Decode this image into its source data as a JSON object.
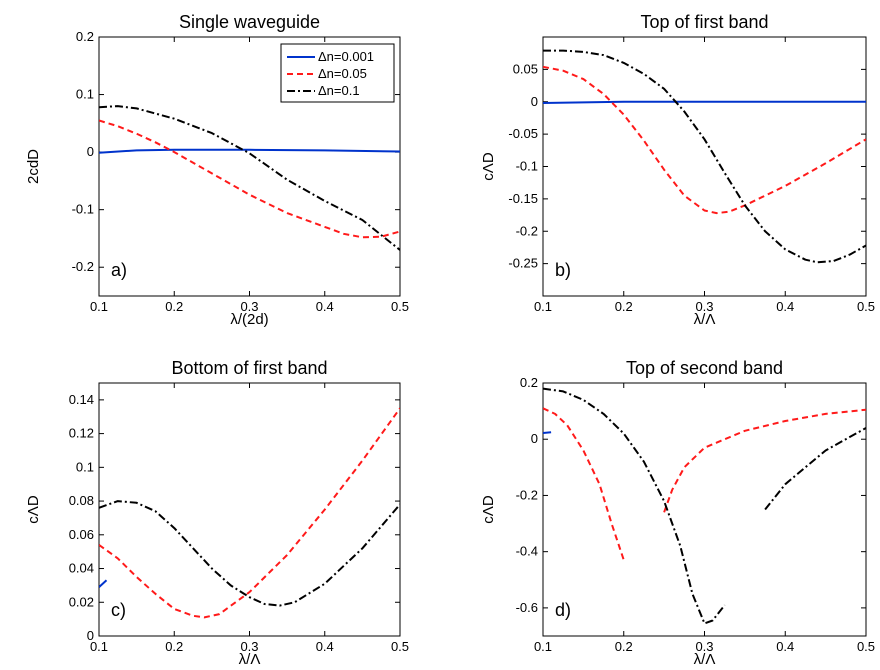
{
  "figure": {
    "background": "#ffffff"
  },
  "chart_data": [
    {
      "type": "line",
      "title": "Single waveguide",
      "xlabel": "λ/(2d)",
      "ylabel": "2cdD",
      "panel_tag": "a)",
      "xlim": [
        0.1,
        0.5
      ],
      "ylim": [
        -0.25,
        0.2
      ],
      "xticks": [
        0.1,
        0.2,
        0.3,
        0.4,
        0.5
      ],
      "xtick_labels": [
        "0.1",
        "0.2",
        "0.3",
        "0.4",
        "0.5"
      ],
      "yticks": [
        -0.2,
        -0.1,
        0,
        0.1,
        0.2
      ],
      "ytick_labels": [
        "-0.2",
        "-0.1",
        "0",
        "0.1",
        "0.2"
      ],
      "grid": false,
      "legend": {
        "position": "top-right",
        "entries": [
          {
            "label": "Δn=0.001",
            "color": "#0033cc",
            "style": "solid"
          },
          {
            "label": "Δn=0.05",
            "color": "#ff1a1a",
            "style": "dashed"
          },
          {
            "label": "Δn=0.1",
            "color": "#000000",
            "style": "dashdot"
          }
        ]
      },
      "series": [
        {
          "name": "Δn=0.001",
          "color": "#0033cc",
          "style": "solid",
          "segments": [
            [
              [
                0.1,
                -0.001
              ],
              [
                0.15,
                0.003
              ],
              [
                0.2,
                0.004
              ],
              [
                0.3,
                0.004
              ],
              [
                0.4,
                0.003
              ],
              [
                0.5,
                0.001
              ]
            ]
          ]
        },
        {
          "name": "Δn=0.05",
          "color": "#ff1a1a",
          "style": "dashed",
          "segments": [
            [
              [
                0.1,
                0.055
              ],
              [
                0.125,
                0.045
              ],
              [
                0.15,
                0.032
              ],
              [
                0.175,
                0.017
              ],
              [
                0.2,
                0.0
              ],
              [
                0.25,
                -0.037
              ],
              [
                0.3,
                -0.074
              ],
              [
                0.35,
                -0.106
              ],
              [
                0.4,
                -0.13
              ],
              [
                0.425,
                -0.142
              ],
              [
                0.45,
                -0.148
              ],
              [
                0.475,
                -0.147
              ],
              [
                0.5,
                -0.138
              ]
            ]
          ]
        },
        {
          "name": "Δn=0.1",
          "color": "#000000",
          "style": "dashdot",
          "segments": [
            [
              [
                0.1,
                0.078
              ],
              [
                0.125,
                0.08
              ],
              [
                0.15,
                0.076
              ],
              [
                0.2,
                0.058
              ],
              [
                0.25,
                0.033
              ],
              [
                0.3,
                -0.002
              ],
              [
                0.35,
                -0.048
              ],
              [
                0.4,
                -0.085
              ],
              [
                0.45,
                -0.118
              ],
              [
                0.5,
                -0.17
              ]
            ]
          ]
        }
      ]
    },
    {
      "type": "line",
      "title": "Top of first band",
      "xlabel": "λ/Λ",
      "ylabel": "cΛD",
      "panel_tag": "b)",
      "xlim": [
        0.1,
        0.5
      ],
      "ylim": [
        -0.3,
        0.1
      ],
      "xticks": [
        0.1,
        0.2,
        0.3,
        0.4,
        0.5
      ],
      "xtick_labels": [
        "0.1",
        "0.2",
        "0.3",
        "0.4",
        "0.5"
      ],
      "yticks": [
        -0.25,
        -0.2,
        -0.15,
        -0.1,
        -0.05,
        0,
        0.05
      ],
      "ytick_labels": [
        "-0.25",
        "-0.2",
        "-0.15",
        "-0.1",
        "-0.05",
        "0",
        "0.05"
      ],
      "grid": false,
      "series": [
        {
          "name": "Δn=0.001",
          "color": "#0033cc",
          "style": "solid",
          "segments": [
            [
              [
                0.1,
                -0.002
              ],
              [
                0.15,
                -0.001
              ],
              [
                0.2,
                0.0
              ],
              [
                0.3,
                0.0
              ],
              [
                0.4,
                0.0
              ],
              [
                0.5,
                0.0
              ]
            ]
          ]
        },
        {
          "name": "Δn=0.05",
          "color": "#ff1a1a",
          "style": "dashed",
          "segments": [
            [
              [
                0.1,
                0.054
              ],
              [
                0.125,
                0.048
              ],
              [
                0.15,
                0.035
              ],
              [
                0.175,
                0.012
              ],
              [
                0.2,
                -0.02
              ],
              [
                0.225,
                -0.06
              ],
              [
                0.25,
                -0.105
              ],
              [
                0.275,
                -0.145
              ],
              [
                0.3,
                -0.168
              ],
              [
                0.315,
                -0.172
              ],
              [
                0.33,
                -0.17
              ],
              [
                0.35,
                -0.16
              ],
              [
                0.4,
                -0.13
              ],
              [
                0.45,
                -0.095
              ],
              [
                0.5,
                -0.058
              ]
            ]
          ]
        },
        {
          "name": "Δn=0.1",
          "color": "#000000",
          "style": "dashdot",
          "segments": [
            [
              [
                0.1,
                0.079
              ],
              [
                0.125,
                0.079
              ],
              [
                0.15,
                0.077
              ],
              [
                0.175,
                0.072
              ],
              [
                0.2,
                0.06
              ],
              [
                0.225,
                0.043
              ],
              [
                0.25,
                0.02
              ],
              [
                0.275,
                -0.015
              ],
              [
                0.3,
                -0.058
              ],
              [
                0.325,
                -0.11
              ],
              [
                0.35,
                -0.16
              ],
              [
                0.375,
                -0.2
              ],
              [
                0.4,
                -0.228
              ],
              [
                0.425,
                -0.244
              ],
              [
                0.44,
                -0.248
              ],
              [
                0.46,
                -0.246
              ],
              [
                0.48,
                -0.236
              ],
              [
                0.5,
                -0.222
              ]
            ]
          ]
        }
      ]
    },
    {
      "type": "line",
      "title": "Bottom of first band",
      "xlabel": "λ/Λ",
      "ylabel": "cΛD",
      "panel_tag": "c)",
      "xlim": [
        0.1,
        0.5
      ],
      "ylim": [
        0,
        0.15
      ],
      "xticks": [
        0.1,
        0.2,
        0.3,
        0.4,
        0.5
      ],
      "xtick_labels": [
        "0.1",
        "0.2",
        "0.3",
        "0.4",
        "0.5"
      ],
      "yticks": [
        0,
        0.02,
        0.04,
        0.06,
        0.08,
        0.1,
        0.12,
        0.14
      ],
      "ytick_labels": [
        "0",
        "0.02",
        "0.04",
        "0.06",
        "0.08",
        "0.1",
        "0.12",
        "0.14"
      ],
      "grid": false,
      "series": [
        {
          "name": "Δn=0.001",
          "color": "#0033cc",
          "style": "solid",
          "segments": [
            [
              [
                0.1,
                0.029
              ],
              [
                0.11,
                0.033
              ]
            ]
          ]
        },
        {
          "name": "Δn=0.05",
          "color": "#ff1a1a",
          "style": "dashed",
          "segments": [
            [
              [
                0.1,
                0.054
              ],
              [
                0.125,
                0.046
              ],
              [
                0.15,
                0.035
              ],
              [
                0.175,
                0.025
              ],
              [
                0.2,
                0.016
              ],
              [
                0.225,
                0.012
              ],
              [
                0.24,
                0.011
              ],
              [
                0.26,
                0.013
              ],
              [
                0.3,
                0.026
              ],
              [
                0.35,
                0.048
              ],
              [
                0.4,
                0.075
              ],
              [
                0.45,
                0.104
              ],
              [
                0.5,
                0.135
              ]
            ]
          ]
        },
        {
          "name": "Δn=0.1",
          "color": "#000000",
          "style": "dashdot",
          "segments": [
            [
              [
                0.1,
                0.076
              ],
              [
                0.125,
                0.08
              ],
              [
                0.15,
                0.079
              ],
              [
                0.175,
                0.074
              ],
              [
                0.2,
                0.064
              ],
              [
                0.225,
                0.052
              ],
              [
                0.25,
                0.04
              ],
              [
                0.275,
                0.03
              ],
              [
                0.3,
                0.023
              ],
              [
                0.32,
                0.019
              ],
              [
                0.34,
                0.018
              ],
              [
                0.36,
                0.02
              ],
              [
                0.4,
                0.031
              ],
              [
                0.45,
                0.052
              ],
              [
                0.5,
                0.078
              ]
            ]
          ]
        }
      ]
    },
    {
      "type": "line",
      "title": "Top of second band",
      "xlabel": "λ/Λ",
      "ylabel": "cΛD",
      "panel_tag": "d)",
      "xlim": [
        0.1,
        0.5
      ],
      "ylim": [
        -0.7,
        0.2
      ],
      "xticks": [
        0.1,
        0.2,
        0.3,
        0.4,
        0.5
      ],
      "xtick_labels": [
        "0.1",
        "0.2",
        "0.3",
        "0.4",
        "0.5"
      ],
      "yticks": [
        -0.6,
        -0.4,
        -0.2,
        0,
        0.2
      ],
      "ytick_labels": [
        "-0.6",
        "-0.4",
        "-0.2",
        "0",
        "0.2"
      ],
      "grid": false,
      "series": [
        {
          "name": "Δn=0.001",
          "color": "#0033cc",
          "style": "solid",
          "segments": [
            [
              [
                0.1,
                0.022
              ],
              [
                0.11,
                0.025
              ]
            ]
          ]
        },
        {
          "name": "Δn=0.05",
          "color": "#ff1a1a",
          "style": "dashed",
          "segments": [
            [
              [
                0.1,
                0.11
              ],
              [
                0.115,
                0.09
              ],
              [
                0.13,
                0.05
              ],
              [
                0.15,
                -0.04
              ],
              [
                0.17,
                -0.16
              ],
              [
                0.185,
                -0.3
              ],
              [
                0.2,
                -0.43
              ]
            ],
            [
              [
                0.25,
                -0.26
              ],
              [
                0.26,
                -0.18
              ],
              [
                0.275,
                -0.1
              ],
              [
                0.3,
                -0.03
              ],
              [
                0.35,
                0.03
              ],
              [
                0.4,
                0.065
              ],
              [
                0.45,
                0.09
              ],
              [
                0.5,
                0.105
              ]
            ]
          ]
        },
        {
          "name": "Δn=0.1",
          "color": "#000000",
          "style": "dashdot",
          "segments": [
            [
              [
                0.1,
                0.18
              ],
              [
                0.125,
                0.17
              ],
              [
                0.15,
                0.14
              ],
              [
                0.175,
                0.09
              ],
              [
                0.2,
                0.02
              ],
              [
                0.225,
                -0.08
              ],
              [
                0.25,
                -0.22
              ],
              [
                0.27,
                -0.38
              ],
              [
                0.285,
                -0.55
              ],
              [
                0.3,
                -0.655
              ],
              [
                0.31,
                -0.645
              ],
              [
                0.325,
                -0.59
              ]
            ],
            [
              [
                0.375,
                -0.25
              ],
              [
                0.4,
                -0.16
              ],
              [
                0.425,
                -0.1
              ],
              [
                0.45,
                -0.04
              ],
              [
                0.475,
                0.0
              ],
              [
                0.5,
                0.04
              ]
            ]
          ]
        }
      ]
    }
  ]
}
